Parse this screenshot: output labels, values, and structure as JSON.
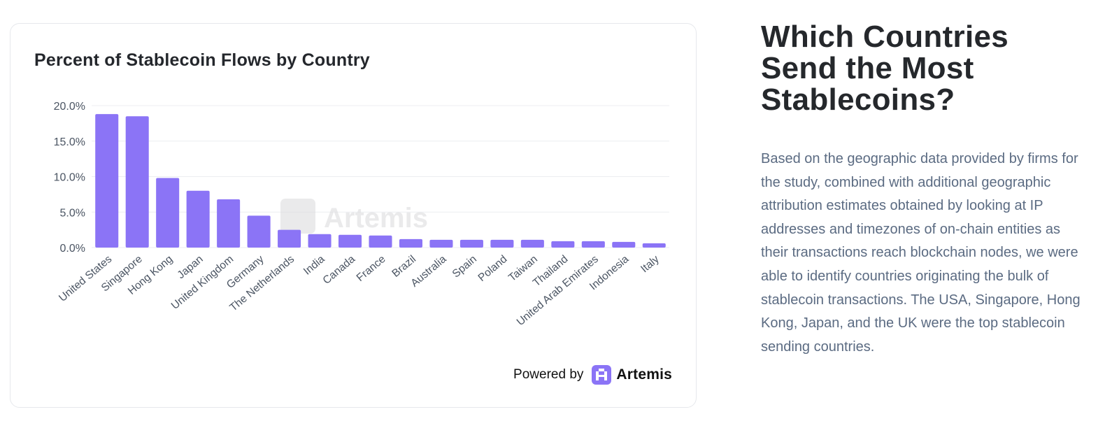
{
  "card": {
    "powered_label": "Powered by",
    "brand_name": "Artemis",
    "watermark_text": "Artemis",
    "brand_color": "#8b74f6",
    "bar_color": "#8b74f6"
  },
  "chart_data": {
    "type": "bar",
    "title": "Percent of Stablecoin Flows by Country",
    "xlabel": "",
    "ylabel": "",
    "ylim": [
      0,
      20
    ],
    "yticks": [
      0,
      5,
      10,
      15,
      20
    ],
    "ytick_labels": [
      "0.0%",
      "5.0%",
      "10.0%",
      "15.0%",
      "20.0%"
    ],
    "grid": true,
    "categories": [
      "United States",
      "Singapore",
      "Hong Kong",
      "Japan",
      "United Kingdom",
      "Germany",
      "The Netherlands",
      "India",
      "Canada",
      "France",
      "Brazil",
      "Australia",
      "Spain",
      "Poland",
      "Taiwan",
      "Thailand",
      "United Arab Emirates",
      "Indonesia",
      "Italy"
    ],
    "values": [
      18.8,
      18.5,
      9.8,
      8.0,
      6.8,
      4.5,
      2.5,
      1.9,
      1.8,
      1.7,
      1.2,
      1.1,
      1.1,
      1.1,
      1.1,
      0.9,
      0.9,
      0.8,
      0.6
    ]
  },
  "side": {
    "title": "Which Countries Send the Most Stablecoins?",
    "body": "Based on the geographic data provided by firms for the study, combined with additional geographic attribution estimates obtained by looking at IP addresses and timezones of on-chain entities as their transactions reach blockchain nodes, we were able to identify countries originating the bulk of stablecoin transactions. The USA, Singapore, Hong Kong, Japan, and the UK were the top stablecoin sending countries."
  }
}
